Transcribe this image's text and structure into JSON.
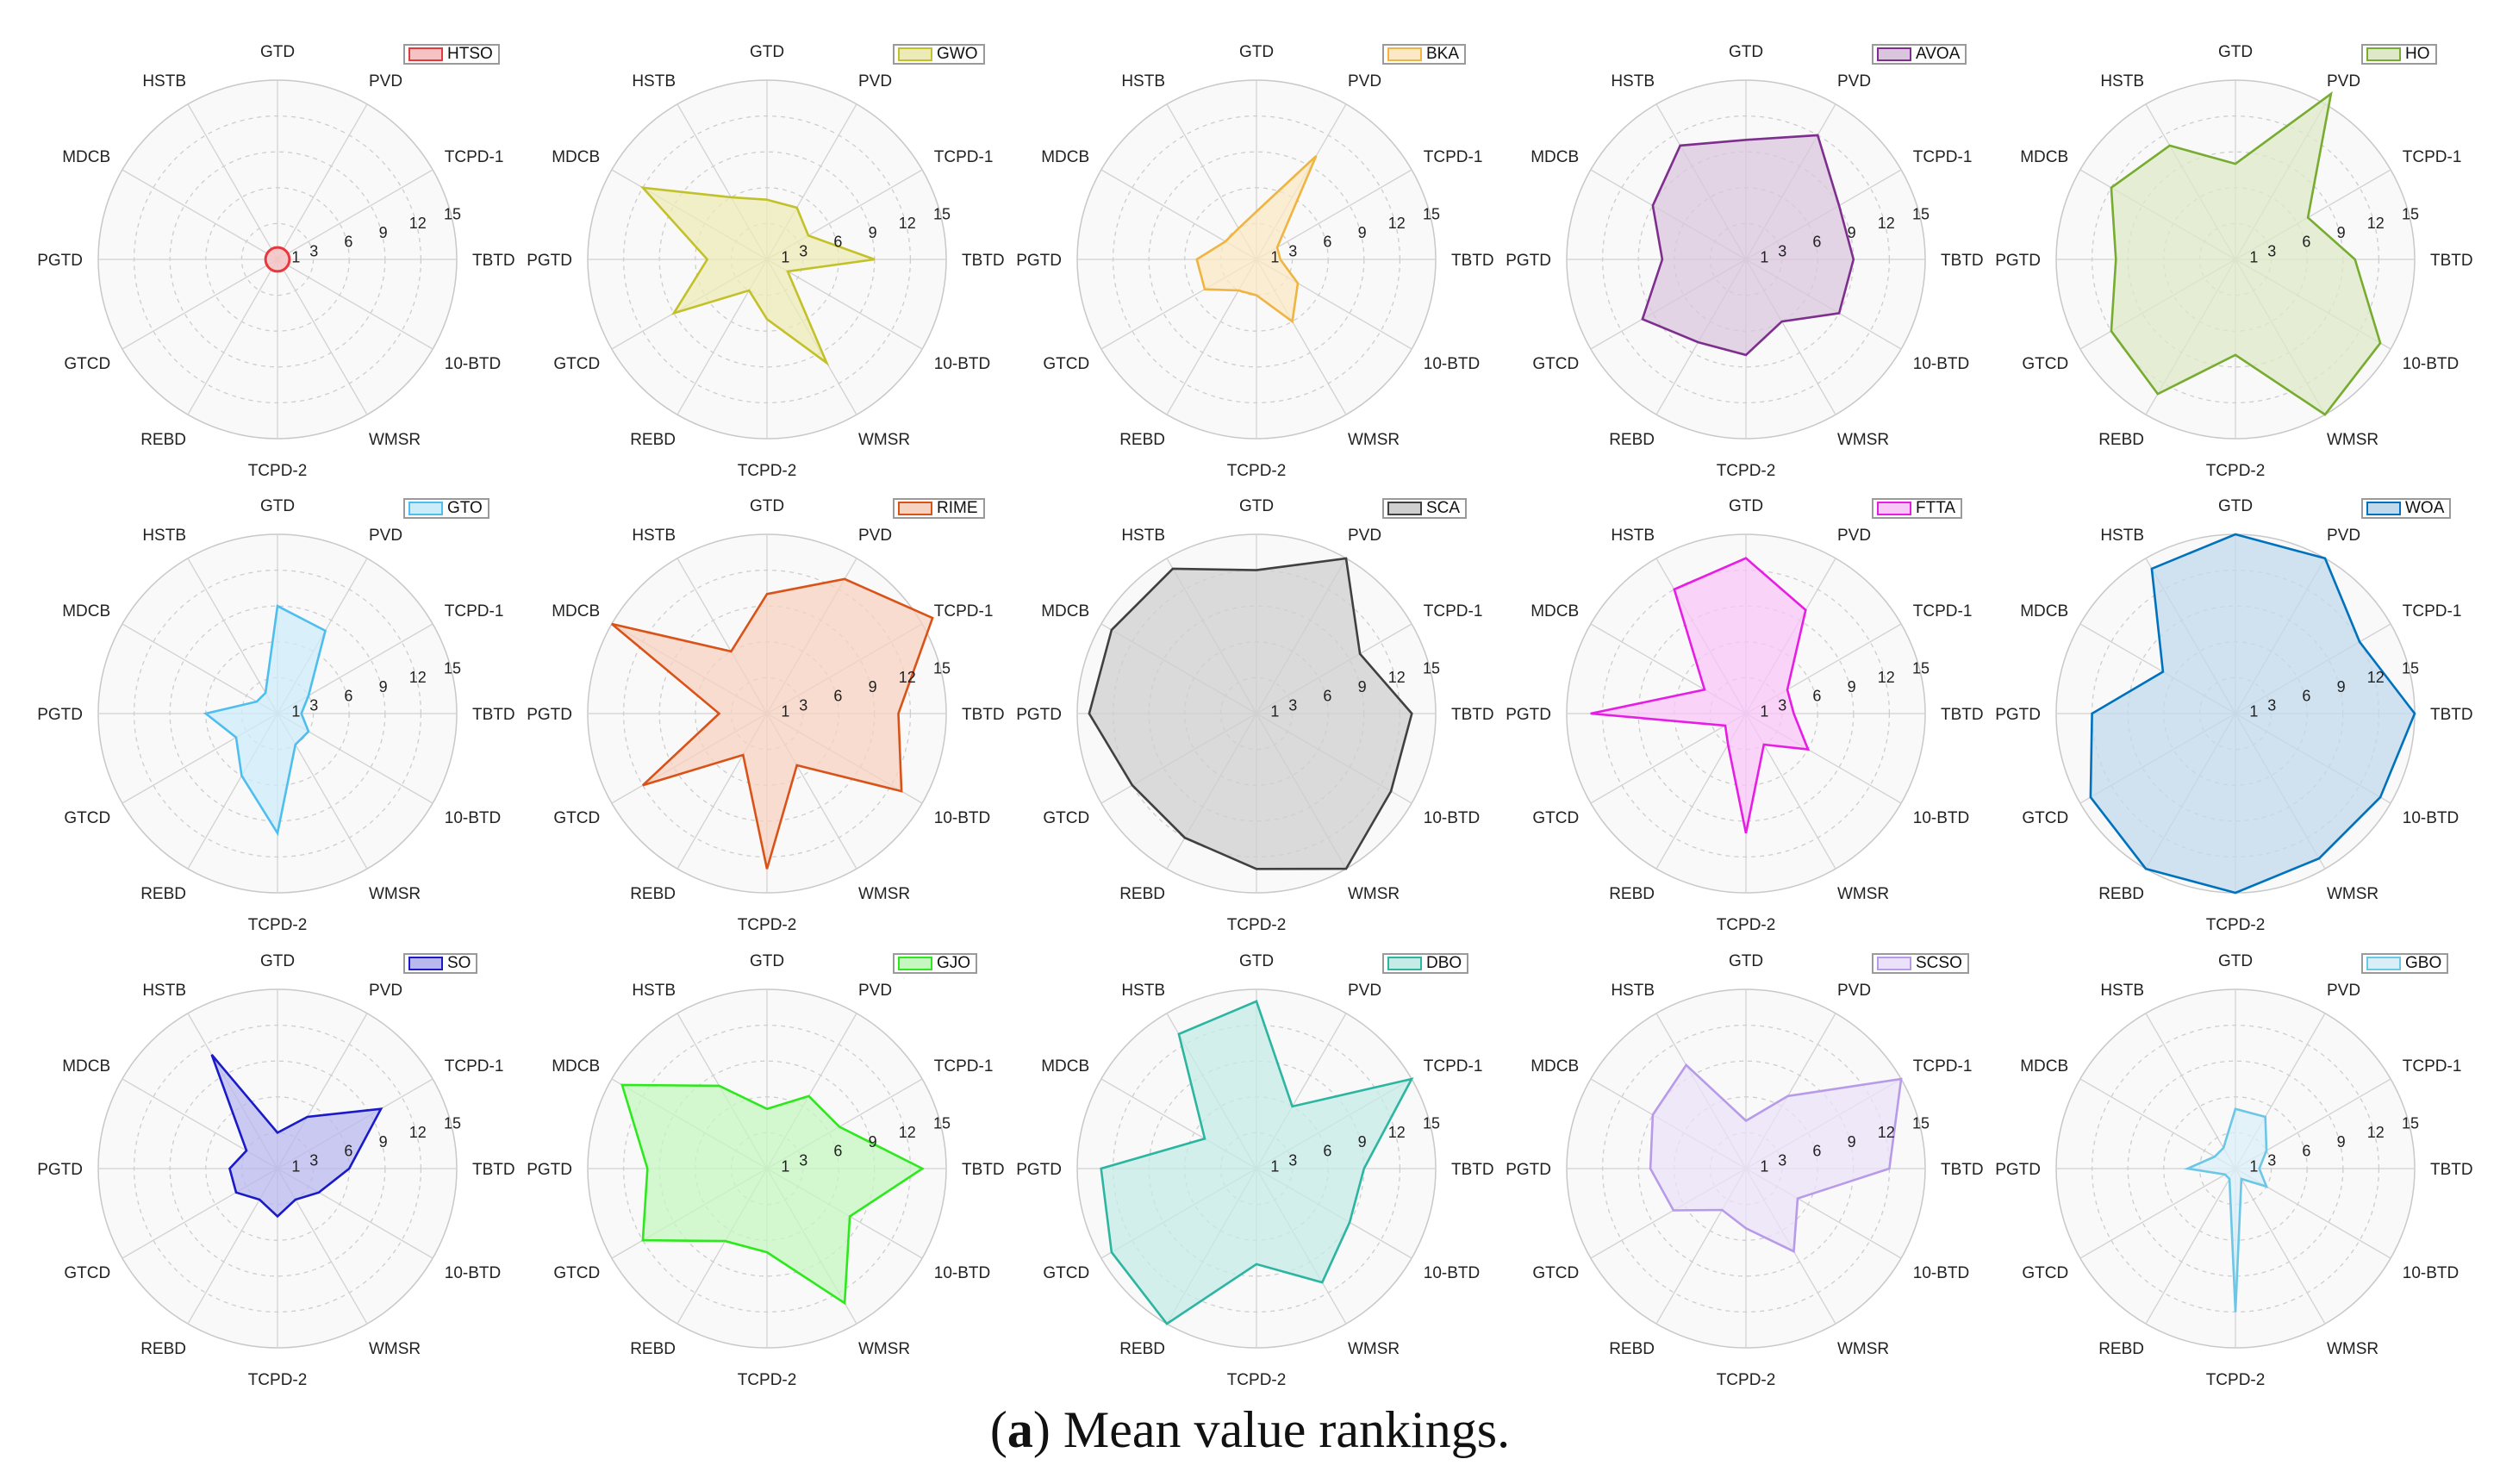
{
  "caption": {
    "letter": "a",
    "text": "Mean value rankings."
  },
  "chart_data": [
    {
      "type": "radar",
      "name": "HTSO",
      "color": "#e8383d",
      "fill": "#f6c3c5",
      "axes": [
        "GTD",
        "PVD",
        "TCPD-1",
        "TBTD",
        "10-BTD",
        "WMSR",
        "TCPD-2",
        "REBD",
        "GTCD",
        "PGTD",
        "MDCB",
        "HSTB"
      ],
      "values": [
        1,
        1,
        1,
        1,
        1,
        1,
        1,
        1,
        1,
        1,
        1,
        1
      ],
      "rlim": [
        0,
        15
      ],
      "ticks": [
        1,
        3,
        6,
        9,
        12,
        15
      ],
      "legend": "top-right"
    },
    {
      "type": "radar",
      "name": "GWO",
      "color": "#c3c12a",
      "fill": "#ecebb7",
      "axes": [
        "GTD",
        "PVD",
        "TCPD-1",
        "TBTD",
        "10-BTD",
        "WMSR",
        "TCPD-2",
        "REBD",
        "GTCD",
        "PGTD",
        "MDCB",
        "HSTB"
      ],
      "values": [
        5,
        5,
        4,
        9,
        2,
        10,
        5,
        3,
        9,
        5,
        12,
        6
      ],
      "rlim": [
        0,
        15
      ],
      "ticks": [
        1,
        3,
        6,
        9,
        12,
        15
      ],
      "legend": "top-right"
    },
    {
      "type": "radar",
      "name": "BKA",
      "color": "#f0b442",
      "fill": "#fbe8c4",
      "axes": [
        "GTD",
        "PVD",
        "TCPD-1",
        "TBTD",
        "10-BTD",
        "WMSR",
        "TCPD-2",
        "REBD",
        "GTCD",
        "PGTD",
        "MDCB",
        "HSTB"
      ],
      "values": [
        4,
        10,
        2,
        2,
        4,
        6,
        3,
        3,
        5,
        5,
        3,
        3
      ],
      "rlim": [
        0,
        15
      ],
      "ticks": [
        1,
        3,
        6,
        9,
        12,
        15
      ],
      "legend": "top-right"
    },
    {
      "type": "radar",
      "name": "AVOA",
      "color": "#7e2f8e",
      "fill": "#d9c6dd",
      "axes": [
        "GTD",
        "PVD",
        "TCPD-1",
        "TBTD",
        "10-BTD",
        "WMSR",
        "TCPD-2",
        "REBD",
        "GTCD",
        "PGTD",
        "MDCB",
        "HSTB"
      ],
      "values": [
        10,
        12,
        9,
        9,
        9,
        6,
        8,
        8,
        10,
        7,
        9,
        11
      ],
      "rlim": [
        0,
        15
      ],
      "ticks": [
        1,
        3,
        6,
        9,
        12,
        15
      ],
      "legend": "top-right"
    },
    {
      "type": "radar",
      "name": "HO",
      "color": "#77ac30",
      "fill": "#dde9c8",
      "axes": [
        "GTD",
        "PVD",
        "TCPD-1",
        "TBTD",
        "10-BTD",
        "WMSR",
        "TCPD-2",
        "REBD",
        "GTCD",
        "PGTD",
        "MDCB",
        "HSTB"
      ],
      "values": [
        8,
        16,
        7,
        10,
        14,
        15,
        8,
        13,
        12,
        10,
        12,
        11
      ],
      "rlim": [
        0,
        15
      ],
      "ticks": [
        1,
        3,
        6,
        9,
        12,
        15
      ],
      "legend": "top-right"
    },
    {
      "type": "radar",
      "name": "GTO",
      "color": "#4dbeee",
      "fill": "#cdecf9",
      "axes": [
        "GTD",
        "PVD",
        "TCPD-1",
        "TBTD",
        "10-BTD",
        "WMSR",
        "TCPD-2",
        "REBD",
        "GTCD",
        "PGTD",
        "MDCB",
        "HSTB"
      ],
      "values": [
        9,
        8,
        3,
        2,
        3,
        3,
        10,
        6,
        4,
        6,
        2,
        2
      ],
      "rlim": [
        0,
        15
      ],
      "ticks": [
        1,
        3,
        6,
        9,
        12,
        15
      ],
      "legend": "top-right"
    },
    {
      "type": "radar",
      "name": "RIME",
      "color": "#d95319",
      "fill": "#f6d2c0",
      "axes": [
        "GTD",
        "PVD",
        "TCPD-1",
        "TBTD",
        "10-BTD",
        "WMSR",
        "TCPD-2",
        "REBD",
        "GTCD",
        "PGTD",
        "MDCB",
        "HSTB"
      ],
      "values": [
        10,
        13,
        16,
        11,
        13,
        5,
        13,
        4,
        12,
        4,
        15,
        6
      ],
      "rlim": [
        0,
        15
      ],
      "ticks": [
        1,
        3,
        6,
        9,
        12,
        15
      ],
      "legend": "top-right"
    },
    {
      "type": "radar",
      "name": "SCA",
      "color": "#404040",
      "fill": "#cfcfcf",
      "axes": [
        "GTD",
        "PVD",
        "TCPD-1",
        "TBTD",
        "10-BTD",
        "WMSR",
        "TCPD-2",
        "REBD",
        "GTCD",
        "PGTD",
        "MDCB",
        "HSTB"
      ],
      "values": [
        12,
        15,
        10,
        13,
        13,
        15,
        13,
        12,
        12,
        14,
        14,
        14
      ],
      "rlim": [
        0,
        15
      ],
      "ticks": [
        1,
        3,
        6,
        9,
        12,
        15
      ],
      "legend": "top-right"
    },
    {
      "type": "radar",
      "name": "FTTA",
      "color": "#e61ee3",
      "fill": "#f8c6f7",
      "axes": [
        "GTD",
        "PVD",
        "TCPD-1",
        "TBTD",
        "10-BTD",
        "WMSR",
        "TCPD-2",
        "REBD",
        "GTCD",
        "PGTD",
        "MDCB",
        "HSTB"
      ],
      "values": [
        13,
        10,
        4,
        4,
        6,
        3,
        10,
        3,
        2,
        13,
        4,
        12
      ],
      "rlim": [
        0,
        15
      ],
      "ticks": [
        1,
        3,
        6,
        9,
        12,
        15
      ],
      "legend": "top-right"
    },
    {
      "type": "radar",
      "name": "WOA",
      "color": "#0072bd",
      "fill": "#c2d9ec",
      "axes": [
        "GTD",
        "PVD",
        "TCPD-1",
        "TBTD",
        "10-BTD",
        "WMSR",
        "TCPD-2",
        "REBD",
        "GTCD",
        "PGTD",
        "MDCB",
        "HSTB"
      ],
      "values": [
        15,
        15,
        12,
        15,
        14,
        14,
        15,
        15,
        14,
        12,
        7,
        14
      ],
      "rlim": [
        0,
        15
      ],
      "ticks": [
        1,
        3,
        6,
        9,
        12,
        15
      ],
      "legend": "top-right"
    },
    {
      "type": "radar",
      "name": "SO",
      "color": "#1a1ac8",
      "fill": "#b8b8ee",
      "axes": [
        "GTD",
        "PVD",
        "TCPD-1",
        "TBTD",
        "10-BTD",
        "WMSR",
        "TCPD-2",
        "REBD",
        "GTCD",
        "PGTD",
        "MDCB",
        "HSTB"
      ],
      "values": [
        3,
        5,
        10,
        6,
        4,
        3,
        4,
        3,
        4,
        4,
        3,
        11
      ],
      "rlim": [
        0,
        15
      ],
      "ticks": [
        1,
        3,
        6,
        9,
        12,
        15
      ],
      "legend": "top-right"
    },
    {
      "type": "radar",
      "name": "GJO",
      "color": "#2ee81e",
      "fill": "#c6f7c1",
      "axes": [
        "GTD",
        "PVD",
        "TCPD-1",
        "TBTD",
        "10-BTD",
        "WMSR",
        "TCPD-2",
        "REBD",
        "GTCD",
        "PGTD",
        "MDCB",
        "HSTB"
      ],
      "values": [
        5,
        7,
        7,
        13,
        8,
        13,
        7,
        7,
        12,
        10,
        14,
        8
      ],
      "rlim": [
        0,
        15
      ],
      "ticks": [
        1,
        3,
        6,
        9,
        12,
        15
      ],
      "legend": "top-right"
    },
    {
      "type": "radar",
      "name": "DBO",
      "color": "#2cb5a0",
      "fill": "#c4ebe5",
      "axes": [
        "GTD",
        "PVD",
        "TCPD-1",
        "TBTD",
        "10-BTD",
        "WMSR",
        "TCPD-2",
        "REBD",
        "GTCD",
        "PGTD",
        "MDCB",
        "HSTB"
      ],
      "values": [
        14,
        6,
        15,
        9,
        9,
        11,
        8,
        15,
        14,
        13,
        5,
        13
      ],
      "rlim": [
        0,
        15
      ],
      "ticks": [
        1,
        3,
        6,
        9,
        12,
        15
      ],
      "legend": "top-right"
    },
    {
      "type": "radar",
      "name": "SCSO",
      "color": "#b79ae8",
      "fill": "#ebe1f8",
      "axes": [
        "GTD",
        "PVD",
        "TCPD-1",
        "TBTD",
        "10-BTD",
        "WMSR",
        "TCPD-2",
        "REBD",
        "GTCD",
        "PGTD",
        "MDCB",
        "HSTB"
      ],
      "values": [
        4,
        7,
        15,
        12,
        5,
        8,
        5,
        4,
        7,
        8,
        9,
        10
      ],
      "rlim": [
        0,
        15
      ],
      "ticks": [
        1,
        3,
        6,
        9,
        12,
        15
      ],
      "legend": "top-right"
    },
    {
      "type": "radar",
      "name": "GBO",
      "color": "#6cc6e6",
      "fill": "#d9eff7",
      "axes": [
        "GTD",
        "PVD",
        "TCPD-1",
        "TBTD",
        "10-BTD",
        "WMSR",
        "TCPD-2",
        "REBD",
        "GTCD",
        "PGTD",
        "MDCB",
        "HSTB"
      ],
      "values": [
        5,
        5,
        3,
        2,
        3,
        1,
        12,
        1,
        1,
        4,
        2,
        2
      ],
      "rlim": [
        0,
        15
      ],
      "ticks": [
        1,
        3,
        6,
        9,
        12,
        15
      ],
      "legend": "top-right"
    }
  ]
}
